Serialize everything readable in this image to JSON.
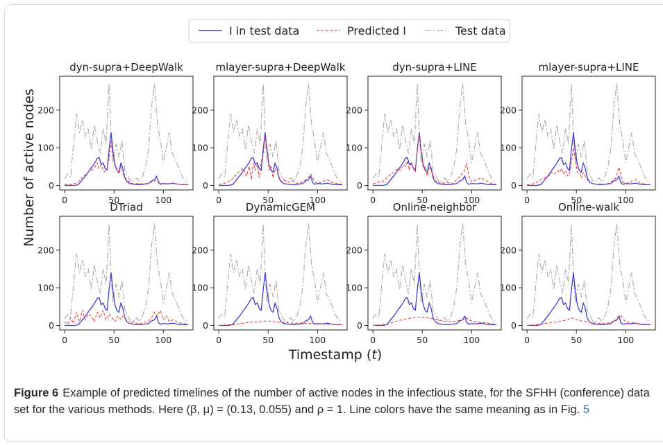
{
  "figure": {
    "ylabel": "Number of active nodes",
    "xlabel": "Timestamp (t)",
    "xlabel_main": "Timestamp (",
    "xlabel_var": "t",
    "xlabel_close": ")"
  },
  "legend": {
    "items": [
      {
        "label": "I in test data",
        "color": "#3b3bd6",
        "dash": "solid"
      },
      {
        "label": "Predicted I",
        "color": "#e8403a",
        "dash": "dashed"
      },
      {
        "label": "Test data",
        "color": "#a8a8a8",
        "dash": "dashdot"
      }
    ]
  },
  "caption": {
    "label": "Figure 6",
    "text": "Example of predicted timelines of the number of active nodes in the infectious state, for the SFHH (conference) data set for the various methods. Here (β, μ) = (0.13, 0.055) and ρ = 1. Line colors have the same meaning as in Fig.",
    "ref": "5"
  },
  "chart_data": {
    "type": "line",
    "layout": "small-multiples 2x4",
    "x_ticks": [
      0,
      50,
      100
    ],
    "y_ticks": [
      0,
      100,
      200
    ],
    "xlim": [
      -5,
      130
    ],
    "ylim": [
      -12,
      290
    ],
    "shared_series": {
      "test_data": {
        "name": "Test data",
        "x": [
          0,
          3,
          6,
          9,
          12,
          15,
          18,
          21,
          24,
          27,
          30,
          33,
          36,
          39,
          42,
          45,
          47,
          49,
          52,
          55,
          58,
          61,
          64,
          67,
          70,
          73,
          76,
          79,
          82,
          85,
          88,
          91,
          94,
          97,
          100,
          103,
          106,
          109,
          112,
          115,
          118,
          121,
          124
        ],
        "values": [
          18,
          30,
          22,
          110,
          190,
          140,
          175,
          130,
          150,
          95,
          160,
          120,
          85,
          150,
          110,
          270,
          130,
          60,
          110,
          75,
          120,
          40,
          25,
          10,
          12,
          20,
          10,
          25,
          50,
          100,
          210,
          270,
          160,
          120,
          60,
          100,
          140,
          85,
          70,
          50,
          30,
          15,
          10
        ]
      },
      "i_test": {
        "name": "I in test data",
        "x": [
          0,
          5,
          10,
          14,
          18,
          22,
          25,
          28,
          31,
          33,
          35,
          37,
          39,
          41,
          43,
          45,
          47,
          49,
          51,
          53,
          55,
          57,
          59,
          61,
          63,
          66,
          70,
          75,
          80,
          85,
          88,
          91,
          93,
          95,
          97,
          100,
          105,
          110,
          115,
          120,
          125
        ],
        "values": [
          0,
          0,
          0,
          2,
          15,
          28,
          40,
          50,
          62,
          72,
          74,
          55,
          60,
          45,
          40,
          95,
          140,
          90,
          55,
          40,
          35,
          60,
          45,
          20,
          10,
          5,
          3,
          2,
          3,
          5,
          12,
          15,
          25,
          8,
          3,
          5,
          4,
          6,
          3,
          2,
          2
        ]
      }
    },
    "panels": [
      {
        "title": "dyn-supra+DeepWalk",
        "predicted": {
          "x": [
            0,
            5,
            10,
            14,
            18,
            22,
            25,
            28,
            31,
            33,
            35,
            37,
            39,
            41,
            43,
            45,
            47,
            49,
            51,
            53,
            55,
            57,
            60,
            63,
            66,
            70,
            75,
            80,
            85,
            90,
            93,
            95,
            97,
            100,
            105,
            110,
            115,
            120,
            125
          ],
          "values": [
            3,
            2,
            5,
            8,
            22,
            30,
            38,
            42,
            50,
            60,
            45,
            55,
            40,
            35,
            45,
            70,
            115,
            80,
            50,
            45,
            30,
            50,
            25,
            15,
            8,
            4,
            5,
            4,
            6,
            10,
            15,
            12,
            6,
            3,
            4,
            5,
            3,
            2,
            2
          ]
        }
      },
      {
        "title": "mlayer-supra+DeepWalk",
        "predicted": {
          "x": [
            0,
            5,
            10,
            14,
            18,
            22,
            25,
            28,
            31,
            33,
            35,
            37,
            39,
            41,
            43,
            45,
            47,
            49,
            51,
            53,
            55,
            57,
            60,
            63,
            66,
            70,
            75,
            80,
            85,
            90,
            93,
            95,
            97,
            100,
            105,
            110,
            115,
            120,
            125
          ],
          "values": [
            2,
            5,
            10,
            18,
            30,
            40,
            45,
            25,
            50,
            15,
            60,
            40,
            55,
            20,
            65,
            80,
            130,
            100,
            40,
            50,
            20,
            45,
            30,
            10,
            15,
            8,
            12,
            5,
            10,
            18,
            30,
            20,
            10,
            5,
            10,
            15,
            8,
            5,
            3
          ]
        }
      },
      {
        "title": "dyn-supra+LINE",
        "predicted": {
          "x": [
            0,
            5,
            10,
            14,
            18,
            22,
            25,
            28,
            31,
            33,
            35,
            37,
            39,
            41,
            43,
            45,
            47,
            49,
            51,
            53,
            55,
            57,
            60,
            63,
            66,
            70,
            75,
            80,
            85,
            90,
            93,
            95,
            97,
            100,
            105,
            110,
            115,
            120,
            125
          ],
          "values": [
            4,
            8,
            10,
            20,
            30,
            35,
            45,
            40,
            55,
            50,
            65,
            40,
            60,
            45,
            35,
            100,
            135,
            90,
            45,
            50,
            25,
            50,
            35,
            12,
            10,
            5,
            8,
            4,
            15,
            30,
            40,
            60,
            25,
            10,
            15,
            20,
            12,
            5,
            3
          ]
        }
      },
      {
        "title": "mlayer-supra+LINE",
        "predicted": {
          "x": [
            0,
            5,
            10,
            14,
            18,
            22,
            25,
            28,
            31,
            33,
            35,
            37,
            39,
            41,
            43,
            45,
            47,
            49,
            51,
            53,
            55,
            57,
            60,
            63,
            66,
            70,
            75,
            80,
            85,
            90,
            93,
            95,
            97,
            100,
            105,
            110,
            115,
            120,
            125
          ],
          "values": [
            2,
            3,
            8,
            15,
            20,
            25,
            35,
            30,
            40,
            35,
            45,
            30,
            40,
            25,
            30,
            60,
            100,
            70,
            35,
            35,
            20,
            35,
            20,
            8,
            6,
            3,
            4,
            3,
            8,
            20,
            48,
            30,
            10,
            5,
            10,
            15,
            6,
            3,
            2
          ]
        }
      },
      {
        "title": "DTriad",
        "predicted": {
          "x": [
            0,
            3,
            6,
            9,
            12,
            15,
            18,
            21,
            24,
            27,
            30,
            33,
            36,
            39,
            42,
            45,
            48,
            51,
            54,
            57,
            60,
            63,
            66,
            70,
            75,
            80,
            85,
            88,
            91,
            94,
            97,
            100,
            103,
            106,
            110,
            115,
            120,
            125
          ],
          "values": [
            10,
            3,
            20,
            5,
            35,
            10,
            40,
            15,
            30,
            25,
            10,
            35,
            20,
            40,
            15,
            30,
            20,
            10,
            25,
            15,
            30,
            12,
            5,
            10,
            3,
            8,
            12,
            20,
            35,
            25,
            40,
            15,
            25,
            10,
            15,
            8,
            5,
            3
          ]
        }
      },
      {
        "title": "DynamicGEM",
        "predicted": {
          "x": [
            0,
            5,
            10,
            15,
            20,
            25,
            30,
            35,
            40,
            45,
            50,
            55,
            60,
            65,
            70,
            75,
            80,
            85,
            90,
            95,
            100,
            105,
            110,
            115,
            120,
            125
          ],
          "values": [
            0,
            1,
            2,
            2,
            4,
            6,
            8,
            9,
            10,
            11,
            12,
            10,
            9,
            8,
            7,
            6,
            6,
            6,
            5,
            5,
            4,
            4,
            3,
            3,
            2,
            2
          ]
        }
      },
      {
        "title": "Online-neighbor",
        "predicted": {
          "x": [
            0,
            5,
            10,
            15,
            20,
            25,
            30,
            35,
            40,
            45,
            50,
            55,
            60,
            65,
            70,
            75,
            80,
            85,
            90,
            93,
            95,
            97,
            100,
            105,
            110,
            115,
            120,
            125
          ],
          "values": [
            0,
            1,
            2,
            4,
            8,
            12,
            15,
            18,
            20,
            22,
            22,
            20,
            18,
            15,
            12,
            10,
            10,
            12,
            15,
            18,
            20,
            15,
            12,
            10,
            8,
            6,
            4,
            3
          ]
        }
      },
      {
        "title": "Online-walk",
        "predicted": {
          "x": [
            0,
            5,
            10,
            15,
            20,
            25,
            30,
            35,
            40,
            45,
            50,
            55,
            60,
            65,
            70,
            75,
            80,
            85,
            90,
            93,
            95,
            97,
            100,
            105,
            110,
            115,
            120,
            125
          ],
          "values": [
            0,
            1,
            2,
            3,
            6,
            8,
            10,
            12,
            14,
            20,
            15,
            12,
            10,
            8,
            6,
            5,
            5,
            8,
            12,
            20,
            28,
            18,
            10,
            8,
            6,
            4,
            3,
            2
          ]
        }
      }
    ]
  }
}
